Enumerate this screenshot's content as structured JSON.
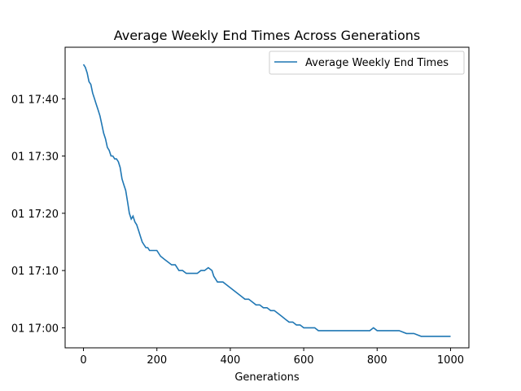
{
  "chart_data": {
    "type": "line",
    "title": "Average Weekly End Times Across Generations",
    "xlabel": "Generations",
    "ylabel": "",
    "xlim": [
      -50,
      1050
    ],
    "ylim": [
      "17:-3.5",
      "17:49"
    ],
    "ylim_minutes_comment": "",
    "x_ticks": [
      0,
      200,
      400,
      600,
      800,
      1000
    ],
    "y_ticks": [
      "01 17:00",
      "01 17:10",
      "01 17:20",
      "01 17:30",
      "01 17:40"
    ],
    "grid": false,
    "legend": {
      "placement": "top-right",
      "entries": [
        "Average Weekly End Times"
      ]
    },
    "series": [
      {
        "name": "Average Weekly End Times",
        "color": "#1f77b4",
        "x": [
          0,
          5,
          10,
          15,
          20,
          25,
          30,
          35,
          40,
          45,
          50,
          55,
          60,
          65,
          70,
          75,
          80,
          85,
          90,
          95,
          100,
          105,
          110,
          115,
          120,
          125,
          130,
          135,
          140,
          145,
          150,
          155,
          160,
          165,
          170,
          175,
          180,
          185,
          190,
          195,
          200,
          210,
          220,
          230,
          240,
          250,
          260,
          270,
          280,
          290,
          300,
          310,
          320,
          330,
          340,
          350,
          355,
          360,
          365,
          370,
          380,
          390,
          400,
          410,
          420,
          430,
          440,
          450,
          460,
          470,
          480,
          490,
          500,
          510,
          520,
          530,
          540,
          550,
          560,
          570,
          580,
          590,
          600,
          610,
          620,
          630,
          640,
          650,
          660,
          680,
          700,
          720,
          740,
          760,
          780,
          790,
          800,
          820,
          840,
          860,
          880,
          900,
          920,
          940,
          960,
          980,
          1000
        ],
        "y": [
          "17:46",
          "17:45.5",
          "17:44.5",
          "17:43",
          "17:42.5",
          "17:41",
          "17:40",
          "17:39",
          "17:38",
          "17:37",
          "17:35.5",
          "17:34",
          "17:33",
          "17:31.5",
          "17:31",
          "17:30",
          "17:30",
          "17:29.5",
          "17:29.5",
          "17:29",
          "17:28",
          "17:26",
          "17:25",
          "17:24",
          "17:22",
          "17:20",
          "17:19",
          "17:19.5",
          "17:18.5",
          "17:18",
          "17:17",
          "17:16",
          "17:15",
          "17:14.5",
          "17:14",
          "17:14",
          "17:13.5",
          "17:13.5",
          "17:13.5",
          "17:13.5",
          "17:13.5",
          "17:12.5",
          "17:12",
          "17:11.5",
          "17:11",
          "17:11",
          "17:10",
          "17:10",
          "17:9.5",
          "17:9.5",
          "17:9.5",
          "17:9.5",
          "17:10",
          "17:10",
          "17:10.5",
          "17:10",
          "17:9",
          "17:8.5",
          "17:8",
          "17:8",
          "17:8",
          "17:7.5",
          "17:7",
          "17:6.5",
          "17:6",
          "17:5.5",
          "17:5",
          "17:5",
          "17:4.5",
          "17:4",
          "17:4",
          "17:3.5",
          "17:3.5",
          "17:3",
          "17:3",
          "17:2.5",
          "17:2",
          "17:1.5",
          "17:1",
          "17:1",
          "17:0.5",
          "17:0.5",
          "17:0",
          "17:0",
          "17:0",
          "17:0",
          "16:59.5",
          "16:59.5",
          "16:59.5",
          "16:59.5",
          "16:59.5",
          "16:59.5",
          "16:59.5",
          "16:59.5",
          "16:59.5",
          "17:00",
          "16:59.5",
          "16:59.5",
          "16:59.5",
          "16:59.5",
          "16:59",
          "16:59",
          "16:58.5",
          "16:58.5",
          "16:58.5",
          "16:58.5",
          "16:58.5"
        ]
      }
    ]
  }
}
